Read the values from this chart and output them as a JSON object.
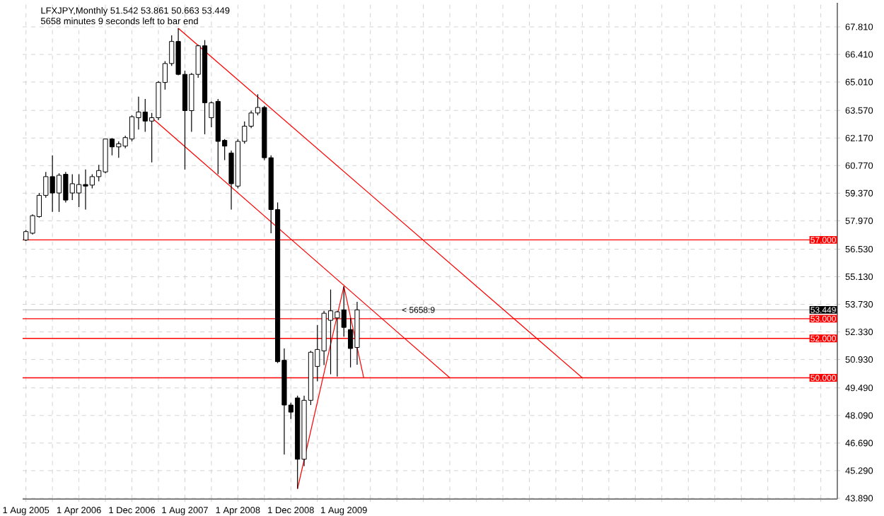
{
  "chart_data": {
    "type": "candlestick",
    "title": "LFXJPY,Monthly  51.542 53.861 50.663 53.449",
    "subtitle": "5658 minutes 9 seconds left to bar end",
    "x": [
      "2005-08",
      "2005-09",
      "2005-10",
      "2005-11",
      "2005-12",
      "2006-01",
      "2006-02",
      "2006-03",
      "2006-04",
      "2006-05",
      "2006-06",
      "2006-07",
      "2006-08",
      "2006-09",
      "2006-10",
      "2006-11",
      "2006-12",
      "2007-01",
      "2007-02",
      "2007-03",
      "2007-04",
      "2007-05",
      "2007-06",
      "2007-07",
      "2007-08",
      "2007-09",
      "2007-10",
      "2007-11",
      "2007-12",
      "2008-01",
      "2008-02",
      "2008-03",
      "2008-04",
      "2008-05",
      "2008-06",
      "2008-07",
      "2008-08",
      "2008-09",
      "2008-10",
      "2008-11",
      "2008-12",
      "2009-01",
      "2009-02",
      "2009-03",
      "2009-04",
      "2009-05",
      "2009-06",
      "2009-07",
      "2009-08",
      "2009-09",
      "2009-10"
    ],
    "ohlc": [
      [
        56.99,
        57.51,
        56.94,
        57.42
      ],
      [
        57.34,
        58.3,
        57.27,
        58.23
      ],
      [
        58.18,
        59.38,
        58.13,
        59.26
      ],
      [
        59.26,
        60.45,
        59.14,
        60.21
      ],
      [
        60.21,
        61.29,
        58.42,
        59.38
      ],
      [
        59.38,
        60.38,
        58.42,
        60.28
      ],
      [
        60.33,
        60.45,
        58.9,
        59.02
      ],
      [
        59.38,
        60.33,
        59.02,
        59.85
      ],
      [
        59.38,
        60.33,
        58.66,
        59.81
      ],
      [
        59.81,
        60.57,
        58.54,
        59.73
      ],
      [
        59.78,
        60.33,
        59.61,
        60.21
      ],
      [
        60.21,
        60.81,
        59.97,
        60.52
      ],
      [
        60.45,
        62.12,
        60.38,
        62.12
      ],
      [
        62.12,
        62.17,
        61.29,
        61.72
      ],
      [
        61.72,
        62.0,
        61.17,
        61.88
      ],
      [
        61.76,
        62.29,
        61.65,
        62.19
      ],
      [
        62.12,
        63.32,
        62.0,
        63.25
      ],
      [
        63.2,
        64.27,
        62.6,
        63.49
      ],
      [
        63.49,
        64.15,
        62.48,
        63.03
      ],
      [
        63.03,
        63.44,
        60.93,
        63.2
      ],
      [
        63.2,
        65.06,
        63.08,
        64.99
      ],
      [
        64.99,
        66.07,
        64.63,
        65.95
      ],
      [
        65.95,
        67.38,
        65.83,
        67.07
      ],
      [
        67.07,
        67.74,
        65.35,
        65.4
      ],
      [
        65.4,
        65.59,
        60.57,
        63.56
      ],
      [
        63.56,
        65.47,
        62.48,
        65.4
      ],
      [
        65.4,
        66.9,
        65.23,
        66.85
      ],
      [
        66.85,
        67.14,
        62.36,
        63.96
      ],
      [
        63.2,
        64.03,
        62.72,
        63.96
      ],
      [
        64.03,
        64.15,
        60.33,
        62.0
      ],
      [
        62.05,
        62.12,
        61.05,
        61.76
      ],
      [
        61.41,
        61.53,
        58.54,
        59.85
      ],
      [
        59.73,
        62.12,
        59.61,
        62.0
      ],
      [
        62.0,
        63.01,
        61.88,
        62.77
      ],
      [
        62.77,
        63.56,
        62.67,
        63.44
      ],
      [
        63.44,
        64.39,
        63.32,
        63.72
      ],
      [
        63.72,
        63.8,
        61.05,
        61.17
      ],
      [
        61.17,
        61.29,
        57.34,
        58.54
      ],
      [
        58.54,
        58.9,
        50.75,
        50.82
      ],
      [
        50.89,
        51.49,
        46.11,
        48.62
      ],
      [
        48.62,
        48.74,
        47.91,
        48.26
      ],
      [
        48.98,
        49.1,
        44.37,
        45.87
      ],
      [
        45.87,
        49.1,
        45.52,
        48.86
      ],
      [
        48.86,
        51.37,
        48.62,
        51.3
      ],
      [
        50.58,
        52.68,
        49.82,
        51.44
      ],
      [
        51.37,
        53.4,
        50.65,
        53.28
      ],
      [
        52.92,
        54.48,
        50.18,
        53.4
      ],
      [
        53.04,
        53.4,
        50.06,
        53.35
      ],
      [
        53.45,
        54.64,
        52.09,
        52.56
      ],
      [
        52.45,
        53.04,
        50.53,
        51.49
      ],
      [
        51.542,
        53.861,
        50.663,
        53.449
      ]
    ],
    "colors": [
      "#ffffff",
      "#ffffff",
      "#ffffff",
      "#ffffff",
      "#000000",
      "#ffffff",
      "#000000",
      "#ffffff",
      "#ffffff",
      "#000000",
      "#ffffff",
      "#ffffff",
      "#ffffff",
      "#000000",
      "#ffffff",
      "#ffffff",
      "#ffffff",
      "#ffffff",
      "#000000",
      "#ffffff",
      "#ffffff",
      "#ffffff",
      "#ffffff",
      "#000000",
      "#000000",
      "#ffffff",
      "#ffffff",
      "#000000",
      "#ffffff",
      "#000000",
      "#000000",
      "#000000",
      "#ffffff",
      "#ffffff",
      "#ffffff",
      "#ffffff",
      "#000000",
      "#000000",
      "#000000",
      "#000000",
      "#000000",
      "#000000",
      "#ffffff",
      "#ffffff",
      "#ffffff",
      "#ffffff",
      "#ffffff",
      "#ffffff",
      "#000000",
      "#000000",
      "#ffffff"
    ],
    "series": [
      {
        "type": "line",
        "color": "#ff0000",
        "x": [
          "2007-07",
          "2012-08"
        ],
        "values": [
          67.74,
          50.0
        ]
      },
      {
        "type": "line",
        "color": "#ff0000",
        "x": [
          "2007-03",
          "2010-12"
        ],
        "values": [
          63.2,
          50.0
        ]
      },
      {
        "type": "line",
        "color": "#ff0000",
        "x": [
          "2009-01",
          "2009-08",
          "2009-11"
        ],
        "values": [
          44.37,
          54.64,
          50.0
        ]
      }
    ],
    "xlim": [
      "2005-07-16",
      "2015-10-16"
    ],
    "ylim": [
      43.85,
      69.03
    ],
    "xticks": [
      {
        "value": "2005-08",
        "label": "1 Aug 2005"
      },
      {
        "value": "2005-12",
        "label": null
      },
      {
        "value": "2006-04",
        "label": "1 Apr 2006"
      },
      {
        "value": "2006-08",
        "label": null
      },
      {
        "value": "2006-12",
        "label": "1 Dec 2006"
      },
      {
        "value": "2007-04",
        "label": null
      },
      {
        "value": "2007-08",
        "label": "1 Aug 2007"
      },
      {
        "value": "2007-12",
        "label": null
      },
      {
        "value": "2008-04",
        "label": "1 Apr 2008"
      },
      {
        "value": "2008-08",
        "label": null
      },
      {
        "value": "2008-12",
        "label": "1 Dec 2008"
      },
      {
        "value": "2009-04",
        "label": null
      },
      {
        "value": "2009-08",
        "label": "1 Aug 2009"
      },
      {
        "value": "2009-12",
        "label": null
      },
      {
        "value": "2010-04",
        "label": null
      },
      {
        "value": "2010-08",
        "label": null
      },
      {
        "value": "2010-12",
        "label": null
      },
      {
        "value": "2011-04",
        "label": null
      },
      {
        "value": "2011-08",
        "label": null
      },
      {
        "value": "2011-12",
        "label": null
      },
      {
        "value": "2012-04",
        "label": null
      },
      {
        "value": "2012-08",
        "label": null
      },
      {
        "value": "2012-12",
        "label": null
      },
      {
        "value": "2013-04",
        "label": null
      },
      {
        "value": "2013-08",
        "label": null
      },
      {
        "value": "2013-12",
        "label": null
      },
      {
        "value": "2014-04",
        "label": null
      },
      {
        "value": "2014-08",
        "label": null
      },
      {
        "value": "2014-12",
        "label": null
      },
      {
        "value": "2015-04",
        "label": null
      },
      {
        "value": "2015-08",
        "label": null
      }
    ],
    "yticks": [
      {
        "value": 67.81,
        "label": "67.810"
      },
      {
        "value": 66.41,
        "label": "66.410"
      },
      {
        "value": 65.01,
        "label": "65.010"
      },
      {
        "value": 63.57,
        "label": "63.570"
      },
      {
        "value": 62.17,
        "label": "62.170"
      },
      {
        "value": 60.77,
        "label": "60.770"
      },
      {
        "value": 59.37,
        "label": "59.370"
      },
      {
        "value": 57.97,
        "label": "57.970"
      },
      {
        "value": 56.53,
        "label": "56.530"
      },
      {
        "value": 55.13,
        "label": "55.130"
      },
      {
        "value": 53.73,
        "label": "53.730"
      },
      {
        "value": 52.33,
        "label": "52.330"
      },
      {
        "value": 50.93,
        "label": "50.930"
      },
      {
        "value": 49.49,
        "label": "49.490"
      },
      {
        "value": 48.09,
        "label": "48.090"
      },
      {
        "value": 46.69,
        "label": "46.690"
      },
      {
        "value": 45.29,
        "label": "45.290"
      },
      {
        "value": 43.89,
        "label": "43.890"
      }
    ],
    "ref_lines": [
      {
        "axis": "y",
        "value": 57.0,
        "label": "57.000",
        "color": "#ff0000"
      },
      {
        "axis": "y",
        "value": 53.0,
        "label": "53.000",
        "color": "#ff0000"
      },
      {
        "axis": "y",
        "value": 52.0,
        "label": "52.000",
        "color": "#ff0000"
      },
      {
        "axis": "y",
        "value": 50.0,
        "label": "50.000",
        "color": "#ff0000"
      },
      {
        "axis": "y",
        "value": 53.449,
        "label": "53.449",
        "color": "#c0c0c0"
      }
    ],
    "annotations": [
      {
        "text": "< 5658:9",
        "x": "2010-04",
        "y": 53.449
      }
    ],
    "grid": true
  }
}
